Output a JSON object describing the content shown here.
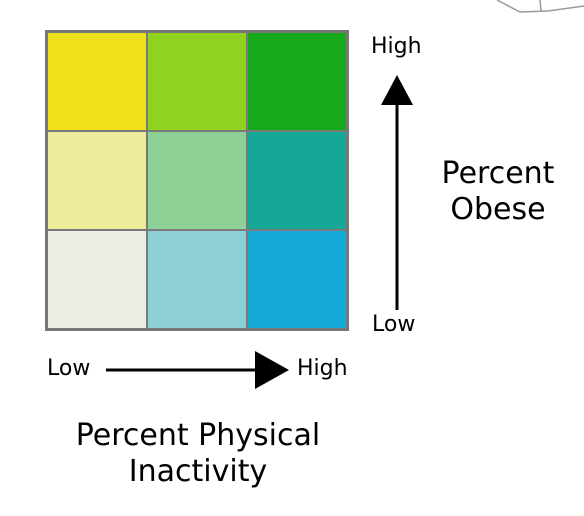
{
  "legend": {
    "grid_colors": [
      [
        "#EFE21C",
        "#8FD31F",
        "#16A91A"
      ],
      [
        "#EEEB9A",
        "#8DD196",
        "#16A896"
      ],
      [
        "#EDEDE3",
        "#8CCFD6",
        "#16AAD8"
      ]
    ],
    "x_axis": {
      "low_label": "Low",
      "high_label": "High",
      "title_line1": "Percent Physical",
      "title_line2": "Inactivity"
    },
    "y_axis": {
      "high_label": "High",
      "low_label": "Low",
      "title_line1": "Percent",
      "title_line2": "Obese"
    }
  }
}
